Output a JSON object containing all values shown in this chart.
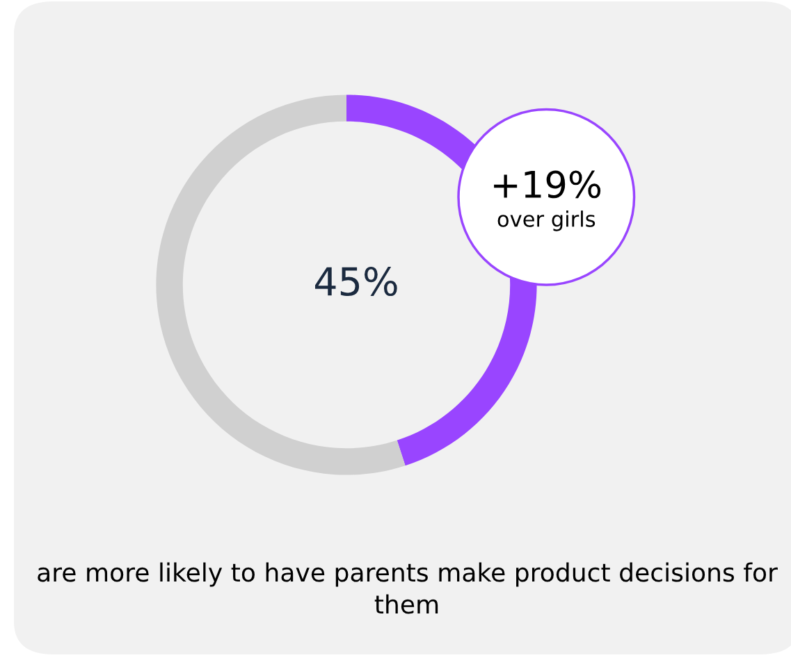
{
  "chart_data": {
    "type": "donut",
    "categories": [
      null,
      null
    ],
    "values": [
      45,
      55
    ],
    "colors": [
      "#9945ff",
      "#d0d0d0"
    ],
    "value_labels": [
      "45%",
      null
    ],
    "annotations": [
      "+19%",
      "over girls",
      "are more likely to have parents make product decisions for them"
    ]
  }
}
